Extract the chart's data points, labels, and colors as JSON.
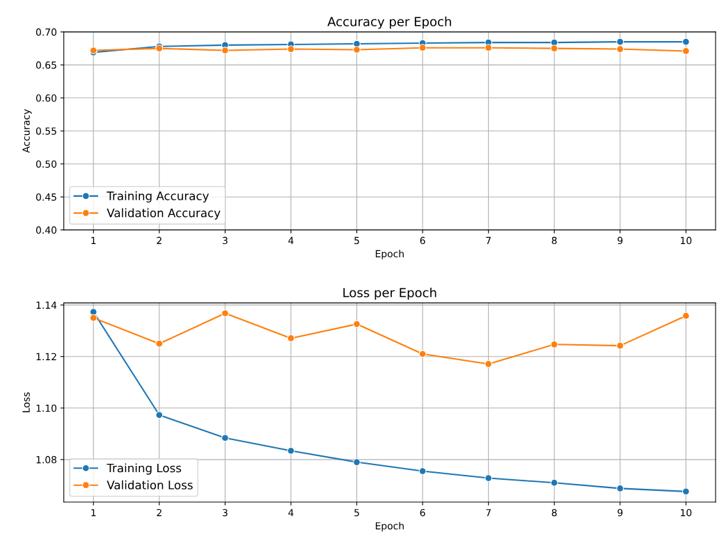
{
  "chart_data": [
    {
      "type": "line",
      "title": "Accuracy per Epoch",
      "xlabel": "Epoch",
      "ylabel": "Accuracy",
      "x": [
        1,
        2,
        3,
        4,
        5,
        6,
        7,
        8,
        9,
        10
      ],
      "series": [
        {
          "name": "Training Accuracy",
          "color": "#1f77b4",
          "values": [
            0.669,
            0.678,
            0.68,
            0.681,
            0.682,
            0.683,
            0.684,
            0.684,
            0.685,
            0.685
          ]
        },
        {
          "name": "Validation Accuracy",
          "color": "#ff7f0e",
          "values": [
            0.672,
            0.675,
            0.672,
            0.674,
            0.673,
            0.676,
            0.676,
            0.675,
            0.674,
            0.671
          ]
        }
      ],
      "xlim": [
        0.55,
        10.45
      ],
      "xticks": [
        1,
        2,
        3,
        4,
        5,
        6,
        7,
        8,
        9,
        10
      ],
      "ylim": [
        0.4,
        0.7
      ],
      "yticks": [
        {
          "value": 0.4,
          "label": "0.40"
        },
        {
          "value": 0.45,
          "label": "0.45"
        },
        {
          "value": 0.5,
          "label": "0.50"
        },
        {
          "value": 0.55,
          "label": "0.55"
        },
        {
          "value": 0.6,
          "label": "0.60"
        },
        {
          "value": 0.65,
          "label": "0.65"
        },
        {
          "value": 0.7,
          "label": "0.70"
        }
      ],
      "grid": true,
      "legend": "bottom left",
      "marker": "circle",
      "line_style": "solid"
    },
    {
      "type": "line",
      "title": "Loss per Epoch",
      "xlabel": "Epoch",
      "ylabel": "Loss",
      "x": [
        1,
        2,
        3,
        4,
        5,
        6,
        7,
        8,
        9,
        10
      ],
      "series": [
        {
          "name": "Training Loss",
          "color": "#1f77b4",
          "values": [
            1.1373,
            1.0973,
            1.0884,
            1.0834,
            1.079,
            1.0755,
            1.0728,
            1.071,
            1.0688,
            1.0676
          ]
        },
        {
          "name": "Validation Loss",
          "color": "#ff7f0e",
          "values": [
            1.135,
            1.125,
            1.1368,
            1.1271,
            1.1326,
            1.121,
            1.1171,
            1.1247,
            1.1242,
            1.1358
          ]
        }
      ],
      "xlim": [
        0.55,
        10.45
      ],
      "xticks": [
        1,
        2,
        3,
        4,
        5,
        6,
        7,
        8,
        9,
        10
      ],
      "ylim": [
        1.0635,
        1.1408
      ],
      "yticks": [
        {
          "value": 1.08,
          "label": "1.08"
        },
        {
          "value": 1.1,
          "label": "1.10"
        },
        {
          "value": 1.12,
          "label": "1.12"
        },
        {
          "value": 1.14,
          "label": "1.14"
        }
      ],
      "grid": true,
      "legend": "bottom left",
      "marker": "circle",
      "line_style": "solid"
    }
  ]
}
